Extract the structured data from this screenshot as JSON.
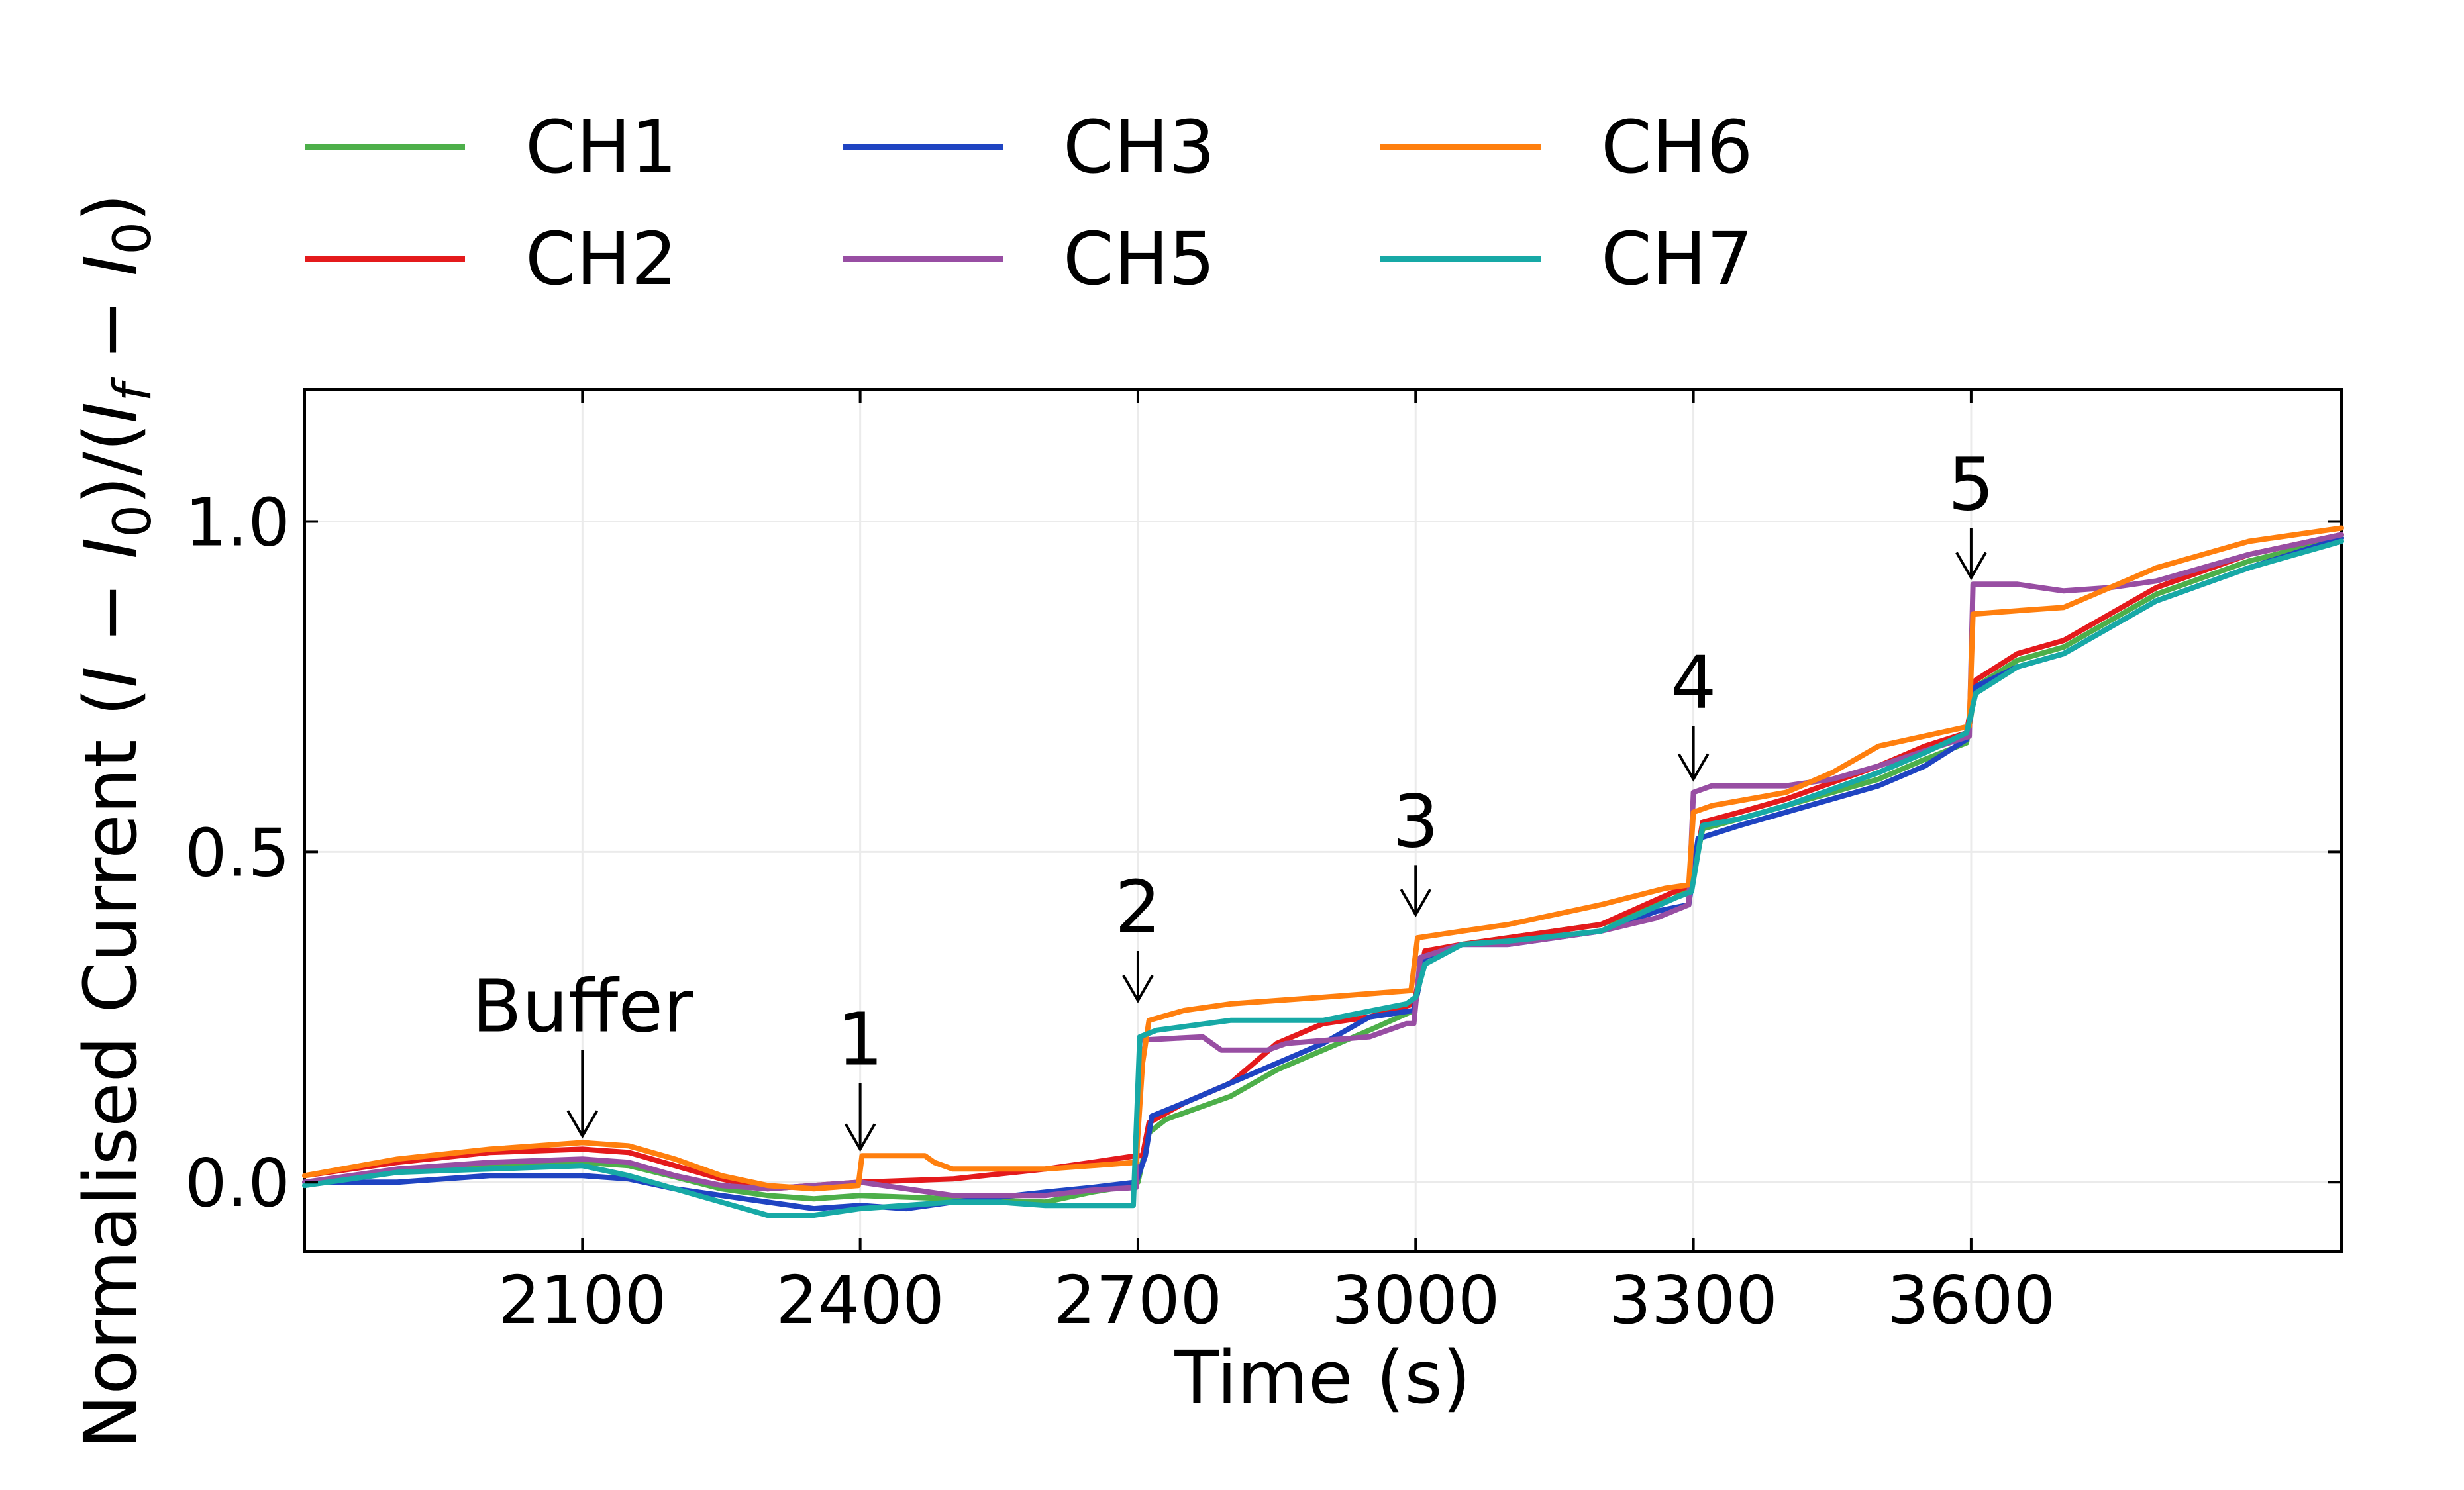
{
  "chart_data": {
    "type": "line",
    "xlabel": "Time (s)",
    "ylabel": "Normalised Current (I − I₀)/(I_f − I₀)",
    "ylabel_parts": [
      "Normalised Current (",
      "I",
      " − ",
      "I",
      "0",
      ")/(",
      "I",
      "f",
      " − ",
      "I",
      "0",
      ")"
    ],
    "xlim": [
      1800,
      4000
    ],
    "ylim": [
      -0.105,
      1.2
    ],
    "xticks": [
      2100,
      2400,
      2700,
      3000,
      3300,
      3600
    ],
    "xtick_labels": [
      "2100",
      "2400",
      "2700",
      "3000",
      "3300",
      "3600"
    ],
    "yticks": [
      0.0,
      0.5,
      1.0
    ],
    "ytick_labels": [
      "0.0",
      "0.5",
      "1.0"
    ],
    "grid": true,
    "legend_position": "top, outside plot, 4 columns",
    "series": [
      {
        "name": "CH1",
        "color": "#4daf4a",
        "points": [
          [
            1800,
            0.0
          ],
          [
            1900,
            0.015
          ],
          [
            2000,
            0.025
          ],
          [
            2100,
            0.03
          ],
          [
            2150,
            0.025
          ],
          [
            2200,
            0.008
          ],
          [
            2250,
            -0.01
          ],
          [
            2300,
            -0.02
          ],
          [
            2350,
            -0.025
          ],
          [
            2400,
            -0.02
          ],
          [
            2500,
            -0.025
          ],
          [
            2600,
            -0.03
          ],
          [
            2650,
            -0.015
          ],
          [
            2695,
            -0.005
          ],
          [
            2700,
            0.0
          ],
          [
            2712,
            0.075
          ],
          [
            2730,
            0.095
          ],
          [
            2760,
            0.11
          ],
          [
            2800,
            0.13
          ],
          [
            2850,
            0.17
          ],
          [
            2900,
            0.2
          ],
          [
            2950,
            0.23
          ],
          [
            2998,
            0.26
          ],
          [
            3010,
            0.34
          ],
          [
            3050,
            0.36
          ],
          [
            3100,
            0.37
          ],
          [
            3200,
            0.39
          ],
          [
            3280,
            0.43
          ],
          [
            3298,
            0.45
          ],
          [
            3310,
            0.535
          ],
          [
            3350,
            0.55
          ],
          [
            3400,
            0.57
          ],
          [
            3500,
            0.61
          ],
          [
            3550,
            0.64
          ],
          [
            3595,
            0.665
          ],
          [
            3605,
            0.75
          ],
          [
            3650,
            0.79
          ],
          [
            3700,
            0.81
          ],
          [
            3750,
            0.85
          ],
          [
            3800,
            0.89
          ],
          [
            3900,
            0.94
          ],
          [
            4000,
            0.975
          ]
        ]
      },
      {
        "name": "CH2",
        "color": "#e41a1c",
        "points": [
          [
            1800,
            0.01
          ],
          [
            1900,
            0.03
          ],
          [
            2000,
            0.045
          ],
          [
            2100,
            0.05
          ],
          [
            2150,
            0.045
          ],
          [
            2200,
            0.025
          ],
          [
            2250,
            0.005
          ],
          [
            2300,
            -0.01
          ],
          [
            2350,
            -0.005
          ],
          [
            2400,
            0.0
          ],
          [
            2500,
            0.005
          ],
          [
            2600,
            0.02
          ],
          [
            2650,
            0.03
          ],
          [
            2698,
            0.04
          ],
          [
            2705,
            0.04
          ],
          [
            2712,
            0.09
          ],
          [
            2750,
            0.12
          ],
          [
            2800,
            0.15
          ],
          [
            2850,
            0.21
          ],
          [
            2900,
            0.24
          ],
          [
            2950,
            0.25
          ],
          [
            2998,
            0.27
          ],
          [
            3010,
            0.35
          ],
          [
            3050,
            0.36
          ],
          [
            3100,
            0.37
          ],
          [
            3200,
            0.39
          ],
          [
            3280,
            0.44
          ],
          [
            3298,
            0.45
          ],
          [
            3310,
            0.545
          ],
          [
            3350,
            0.56
          ],
          [
            3400,
            0.58
          ],
          [
            3500,
            0.63
          ],
          [
            3550,
            0.66
          ],
          [
            3595,
            0.68
          ],
          [
            3605,
            0.76
          ],
          [
            3650,
            0.8
          ],
          [
            3700,
            0.82
          ],
          [
            3750,
            0.86
          ],
          [
            3800,
            0.9
          ],
          [
            3900,
            0.95
          ],
          [
            4000,
            0.98
          ]
        ]
      },
      {
        "name": "CH3",
        "color": "#1f44c2",
        "points": [
          [
            1800,
            0.0
          ],
          [
            1900,
            0.0
          ],
          [
            2000,
            0.01
          ],
          [
            2100,
            0.01
          ],
          [
            2150,
            0.005
          ],
          [
            2200,
            -0.01
          ],
          [
            2250,
            -0.02
          ],
          [
            2300,
            -0.03
          ],
          [
            2350,
            -0.04
          ],
          [
            2400,
            -0.035
          ],
          [
            2450,
            -0.04
          ],
          [
            2500,
            -0.03
          ],
          [
            2600,
            -0.015
          ],
          [
            2650,
            -0.008
          ],
          [
            2698,
            0.0
          ],
          [
            2708,
            0.04
          ],
          [
            2715,
            0.1
          ],
          [
            2750,
            0.12
          ],
          [
            2800,
            0.15
          ],
          [
            2850,
            0.18
          ],
          [
            2900,
            0.21
          ],
          [
            2950,
            0.25
          ],
          [
            2998,
            0.26
          ],
          [
            3010,
            0.34
          ],
          [
            3050,
            0.36
          ],
          [
            3100,
            0.36
          ],
          [
            3200,
            0.38
          ],
          [
            3260,
            0.41
          ],
          [
            3295,
            0.42
          ],
          [
            3305,
            0.52
          ],
          [
            3350,
            0.54
          ],
          [
            3400,
            0.56
          ],
          [
            3500,
            0.6
          ],
          [
            3550,
            0.63
          ],
          [
            3595,
            0.67
          ],
          [
            3605,
            0.75
          ],
          [
            3650,
            0.78
          ],
          [
            3700,
            0.8
          ],
          [
            3750,
            0.84
          ],
          [
            3800,
            0.88
          ],
          [
            3900,
            0.93
          ],
          [
            4000,
            0.975
          ]
        ]
      },
      {
        "name": "CH5",
        "color": "#984ea3",
        "points": [
          [
            1800,
            0.0
          ],
          [
            1900,
            0.02
          ],
          [
            2000,
            0.03
          ],
          [
            2100,
            0.035
          ],
          [
            2150,
            0.03
          ],
          [
            2200,
            0.01
          ],
          [
            2250,
            -0.005
          ],
          [
            2300,
            -0.01
          ],
          [
            2350,
            -0.005
          ],
          [
            2400,
            0.0
          ],
          [
            2450,
            -0.01
          ],
          [
            2500,
            -0.02
          ],
          [
            2600,
            -0.02
          ],
          [
            2650,
            -0.012
          ],
          [
            2698,
            -0.008
          ],
          [
            2702,
            0.215
          ],
          [
            2770,
            0.22
          ],
          [
            2790,
            0.2
          ],
          [
            2840,
            0.2
          ],
          [
            2860,
            0.21
          ],
          [
            2950,
            0.22
          ],
          [
            2990,
            0.24
          ],
          [
            2998,
            0.24
          ],
          [
            3005,
            0.34
          ],
          [
            3050,
            0.36
          ],
          [
            3100,
            0.36
          ],
          [
            3200,
            0.38
          ],
          [
            3260,
            0.4
          ],
          [
            3295,
            0.42
          ],
          [
            3300,
            0.59
          ],
          [
            3320,
            0.6
          ],
          [
            3400,
            0.6
          ],
          [
            3450,
            0.61
          ],
          [
            3500,
            0.63
          ],
          [
            3598,
            0.675
          ],
          [
            3602,
            0.905
          ],
          [
            3650,
            0.905
          ],
          [
            3700,
            0.895
          ],
          [
            3750,
            0.9
          ],
          [
            3800,
            0.91
          ],
          [
            3900,
            0.95
          ],
          [
            4000,
            0.98
          ]
        ]
      },
      {
        "name": "CH6",
        "color": "#ff7f0e",
        "points": [
          [
            1800,
            0.01
          ],
          [
            1900,
            0.035
          ],
          [
            2000,
            0.05
          ],
          [
            2100,
            0.06
          ],
          [
            2150,
            0.055
          ],
          [
            2200,
            0.035
          ],
          [
            2250,
            0.01
          ],
          [
            2300,
            -0.005
          ],
          [
            2350,
            -0.01
          ],
          [
            2398,
            -0.005
          ],
          [
            2402,
            0.04
          ],
          [
            2470,
            0.04
          ],
          [
            2480,
            0.03
          ],
          [
            2500,
            0.02
          ],
          [
            2600,
            0.02
          ],
          [
            2650,
            0.025
          ],
          [
            2698,
            0.03
          ],
          [
            2705,
            0.18
          ],
          [
            2712,
            0.245
          ],
          [
            2750,
            0.26
          ],
          [
            2800,
            0.27
          ],
          [
            2900,
            0.28
          ],
          [
            2995,
            0.29
          ],
          [
            3002,
            0.37
          ],
          [
            3050,
            0.38
          ],
          [
            3100,
            0.39
          ],
          [
            3200,
            0.42
          ],
          [
            3270,
            0.445
          ],
          [
            3295,
            0.45
          ],
          [
            3300,
            0.56
          ],
          [
            3320,
            0.57
          ],
          [
            3400,
            0.59
          ],
          [
            3450,
            0.62
          ],
          [
            3500,
            0.66
          ],
          [
            3598,
            0.69
          ],
          [
            3602,
            0.86
          ],
          [
            3650,
            0.865
          ],
          [
            3700,
            0.87
          ],
          [
            3750,
            0.9
          ],
          [
            3800,
            0.93
          ],
          [
            3900,
            0.97
          ],
          [
            4000,
            0.99
          ]
        ]
      },
      {
        "name": "CH7",
        "color": "#17a9a6",
        "points": [
          [
            1800,
            -0.005
          ],
          [
            1900,
            0.015
          ],
          [
            2000,
            0.02
          ],
          [
            2100,
            0.025
          ],
          [
            2150,
            0.01
          ],
          [
            2200,
            -0.01
          ],
          [
            2250,
            -0.03
          ],
          [
            2300,
            -0.05
          ],
          [
            2350,
            -0.05
          ],
          [
            2400,
            -0.04
          ],
          [
            2500,
            -0.03
          ],
          [
            2550,
            -0.03
          ],
          [
            2600,
            -0.035
          ],
          [
            2650,
            -0.035
          ],
          [
            2695,
            -0.035
          ],
          [
            2702,
            0.22
          ],
          [
            2720,
            0.23
          ],
          [
            2800,
            0.245
          ],
          [
            2900,
            0.245
          ],
          [
            2990,
            0.27
          ],
          [
            3000,
            0.28
          ],
          [
            3010,
            0.33
          ],
          [
            3050,
            0.36
          ],
          [
            3100,
            0.365
          ],
          [
            3200,
            0.38
          ],
          [
            3280,
            0.43
          ],
          [
            3298,
            0.44
          ],
          [
            3310,
            0.54
          ],
          [
            3350,
            0.55
          ],
          [
            3400,
            0.57
          ],
          [
            3500,
            0.62
          ],
          [
            3550,
            0.65
          ],
          [
            3595,
            0.68
          ],
          [
            3605,
            0.74
          ],
          [
            3650,
            0.78
          ],
          [
            3700,
            0.8
          ],
          [
            3750,
            0.84
          ],
          [
            3800,
            0.88
          ],
          [
            3900,
            0.93
          ],
          [
            4000,
            0.97
          ]
        ]
      }
    ],
    "annotations": [
      {
        "label": "Buffer",
        "x": 2100,
        "arrow_tip_y": 0.07,
        "arrow_tail_y": 0.2
      },
      {
        "label": "1",
        "x": 2400,
        "arrow_tip_y": 0.05,
        "arrow_tail_y": 0.15
      },
      {
        "label": "2",
        "x": 2700,
        "arrow_tip_y": 0.275,
        "arrow_tail_y": 0.35
      },
      {
        "label": "3",
        "x": 3000,
        "arrow_tip_y": 0.405,
        "arrow_tail_y": 0.48
      },
      {
        "label": "4",
        "x": 3300,
        "arrow_tip_y": 0.61,
        "arrow_tail_y": 0.69
      },
      {
        "label": "5",
        "x": 3600,
        "arrow_tip_y": 0.915,
        "arrow_tail_y": 0.99
      }
    ]
  }
}
